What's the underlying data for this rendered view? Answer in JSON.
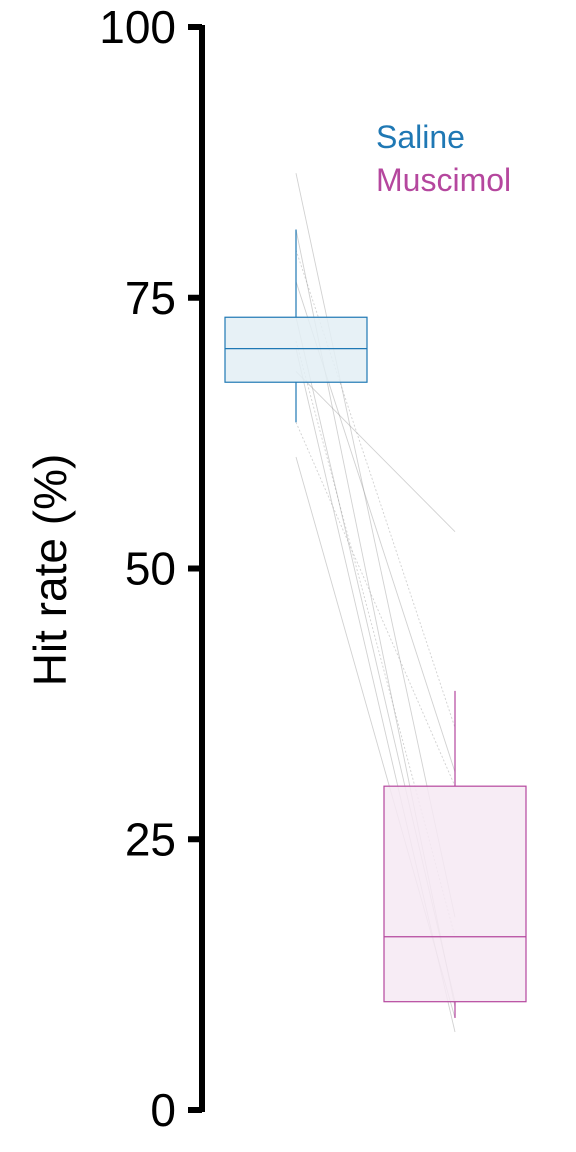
{
  "chart_data": {
    "type": "box",
    "ylabel": "Hit rate (%)",
    "ylim": [
      0,
      100
    ],
    "yticks": [
      0,
      25,
      50,
      75,
      100
    ],
    "ytick_labels": [
      "0",
      "25",
      "50",
      "75",
      "100"
    ],
    "legend": [
      "Saline",
      "Muscimol"
    ],
    "legend_position": "top-right",
    "grid": false,
    "groups": [
      {
        "name": "Saline",
        "color": "#1f78b4",
        "fill": "#e3eef5",
        "whisker_low": 63.5,
        "q1": 67.2,
        "median": 70.3,
        "q3": 73.2,
        "whisker_high": 81.3
      },
      {
        "name": "Muscimol",
        "color": "#b5479e",
        "fill": "#f6e9f3",
        "whisker_low": 8.5,
        "q1": 10.0,
        "median": 16.0,
        "q3": 29.9,
        "whisker_high": 38.7
      }
    ],
    "paired_lines": [
      [
        86.5,
        17.8
      ],
      [
        81.3,
        9.5
      ],
      [
        79.4,
        35.3
      ],
      [
        76.5,
        31.2
      ],
      [
        73.2,
        10.0
      ],
      [
        71.0,
        16.0
      ],
      [
        70.3,
        7.2
      ],
      [
        68.2,
        53.4
      ],
      [
        63.5,
        29.9
      ],
      [
        60.3,
        8.5
      ]
    ]
  }
}
